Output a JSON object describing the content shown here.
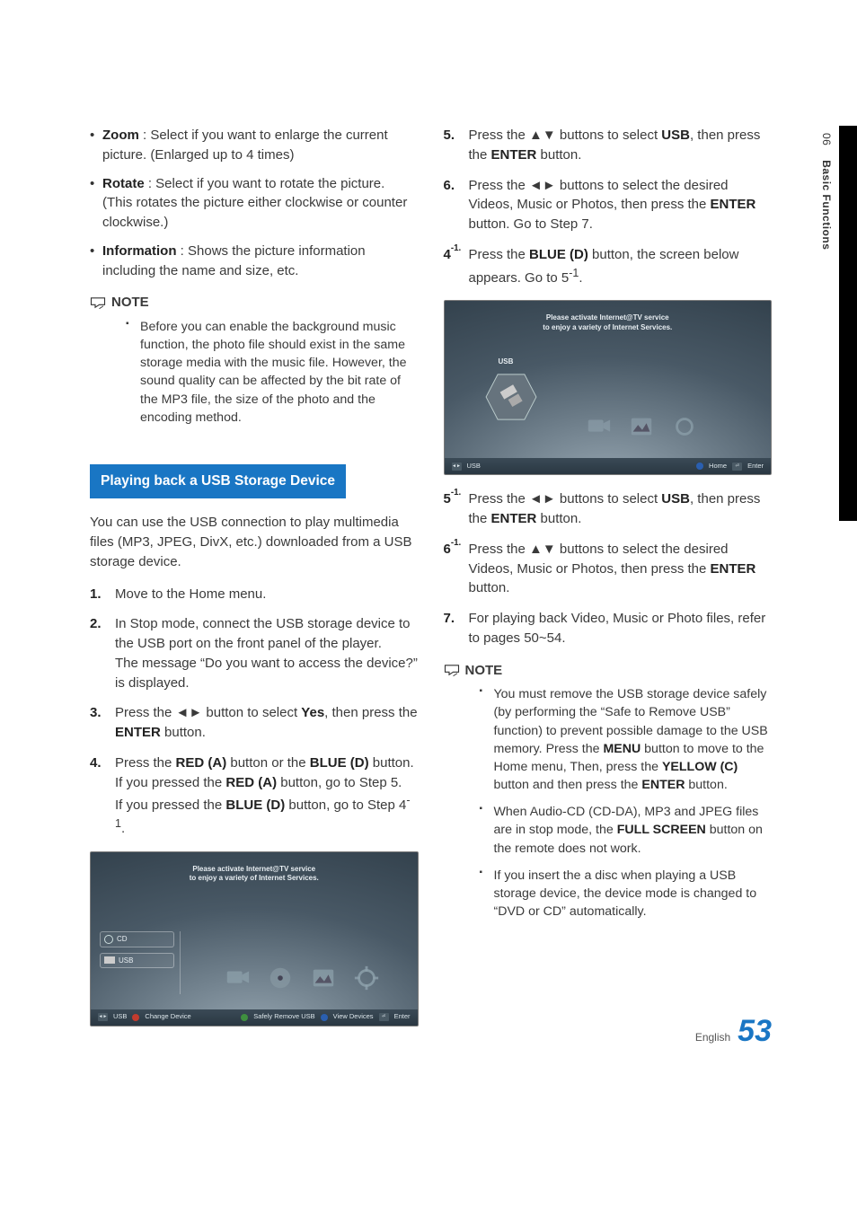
{
  "side": {
    "section_no": "06",
    "section_title": "Basic Functions"
  },
  "left": {
    "bullets": [
      {
        "term": "Zoom",
        "text": " : Select if you want to enlarge the current picture. (Enlarged up to 4 times)"
      },
      {
        "term": "Rotate",
        "text": " : Select if you want to rotate the picture. (This rotates the picture either clockwise or counter clockwise.)"
      },
      {
        "term": "Information",
        "text": " : Shows the picture information including the name and size, etc."
      }
    ],
    "note_label": "NOTE",
    "note1": "Before you can enable the background music function, the photo file should exist in the same storage media with the music file. However, the sound quality can be affected by the bit rate of the MP3 file, the size of the photo and the encoding method.",
    "section_heading": "Playing back a USB Storage Device",
    "intro": "You can use the USB connection to play multimedia files (MP3, JPEG, DivX, etc.) downloaded from a USB storage device.",
    "steps": [
      {
        "no": "1.",
        "html": "Move to the Home menu."
      },
      {
        "no": "2.",
        "html": "In Stop mode, connect the USB storage device to the USB port on the front panel of the player.<br>The message “Do you want to access the device?” is displayed."
      },
      {
        "no": "3.",
        "html": "Press the ◄► button to select <span class=\"b\">Yes</span>, then press the <span class=\"b\">ENTER</span> button."
      },
      {
        "no": "4.",
        "html": "Press the <span class=\"b\">RED (A)</span> button or the <span class=\"b\">BLUE (D)</span> button.<br>If you pressed the <span class=\"b\">RED (A)</span> button, go to Step 5.<br>If you pressed the <span class=\"b\">BLUE (D)</span> button, go to Step 4<sup>-1</sup>."
      }
    ]
  },
  "right": {
    "steps_a": [
      {
        "no": "5.",
        "html": "Press the ▲▼ buttons to select <span class=\"b\">USB</span>, then press the <span class=\"b\">ENTER</span> button."
      },
      {
        "no": "6.",
        "html": "Press the ◄► buttons to select the desired Videos, Music or Photos, then press the <span class=\"b\">ENTER</span> button. Go to Step 7."
      },
      {
        "no": "4-1.",
        "sup": true,
        "html": "Press the <span class=\"b\">BLUE (D)</span> button, the screen below appears. Go to 5<sup>-1</sup>."
      }
    ],
    "steps_b": [
      {
        "no": "5-1.",
        "sup": true,
        "html": "Press the ◄► buttons to select <span class=\"b\">USB</span>, then press the <span class=\"b\">ENTER</span> button."
      },
      {
        "no": "6-1.",
        "sup": true,
        "html": "Press the ▲▼ buttons to select the desired Videos, Music or Photos, then press the <span class=\"b\">ENTER</span> button."
      },
      {
        "no": "7.",
        "html": "For playing back Video, Music or Photo files, refer to pages 50~54."
      }
    ],
    "note_label": "NOTE",
    "notes": [
      "You must remove the USB storage device safely (by performing the “Safe to Remove USB” function) to prevent possible damage to the USB memory. Press the <span class=\"b\">MENU</span> button to move to the Home menu, Then, press the <span class=\"b\">YELLOW (C)</span> button and then press the <span class=\"b\">ENTER</span> button.",
      "When Audio-CD (CD-DA), MP3 and JPEG files are in stop mode, the <span class=\"b\">FULL SCREEN</span> button on the remote does not work.",
      "If you insert the a disc when playing a USB storage device, the device mode is changed to “DVD or CD” automatically."
    ]
  },
  "scr": {
    "banner1": "Please activate Internet@TV service",
    "banner2": "to enjoy a variety of Internet Services.",
    "cd": "CD",
    "usb": "USB",
    "usb_footer": "USB",
    "change_device": "Change Device",
    "safe_remove": "Safely Remove USB",
    "view_devices": "View Devices",
    "enter": "Enter",
    "home": "Home",
    "arrows": "123"
  },
  "footer": {
    "lang": "English",
    "page": "53"
  },
  "colors": {
    "accent": "#1976c4",
    "text": "#3a3a3a",
    "key_red": "#c23b2e",
    "key_green": "#3f8f3f",
    "key_blue": "#2a5fb0",
    "key_yellow": "#d6b93a"
  }
}
